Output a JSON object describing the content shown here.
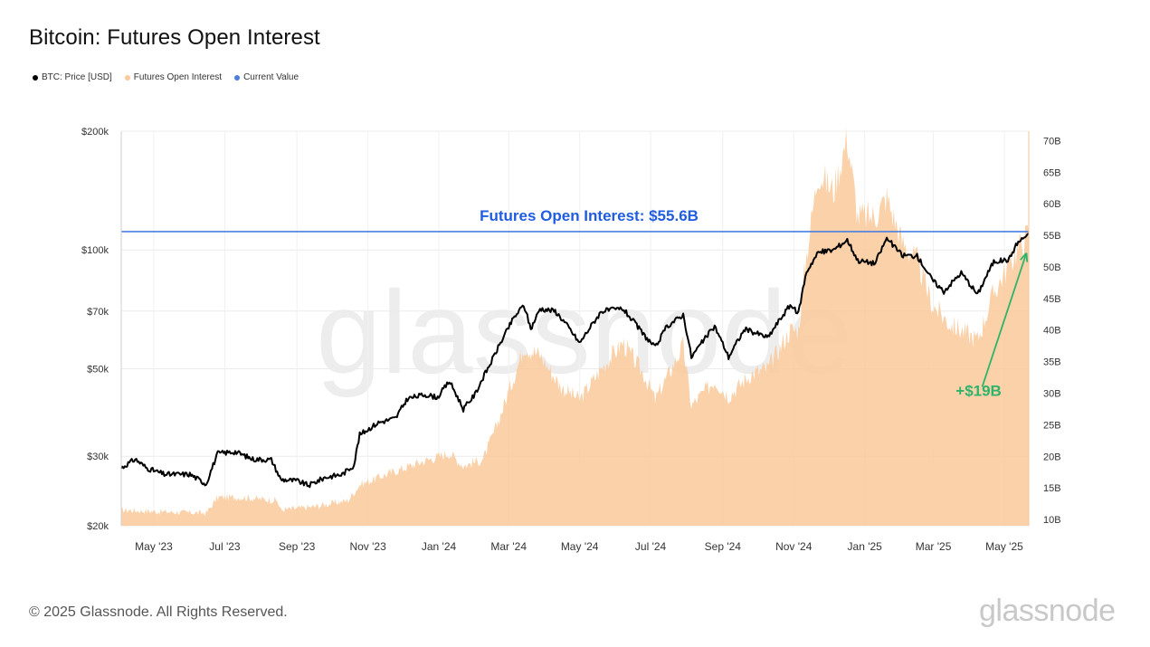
{
  "title": "Bitcoin: Futures Open Interest",
  "legend": [
    {
      "label": "BTC: Price [USD]",
      "color": "#000000"
    },
    {
      "label": "Futures Open Interest",
      "color": "#f9c99a"
    },
    {
      "label": "Current Value",
      "color": "#4a7fe0"
    }
  ],
  "footer": "© 2025 Glassnode. All Rights Reserved.",
  "brand": "glassnode",
  "watermark": "glassnode",
  "chart_data": {
    "type": "line",
    "x_axis": {
      "ticks": [
        "May '23",
        "Jul '23",
        "Sep '23",
        "Nov '23",
        "Jan '24",
        "Mar '24",
        "May '24",
        "Jul '24",
        "Sep '24",
        "Nov '24",
        "Jan '25",
        "Mar '25",
        "May '25"
      ],
      "range": [
        "2023-04-03",
        "2025-05-22"
      ]
    },
    "y_left": {
      "scale": "log",
      "range": [
        20000,
        200000
      ],
      "ticks": [
        {
          "value": 200000,
          "label": "$200k"
        },
        {
          "value": 100000,
          "label": "$100k"
        },
        {
          "value": 70000,
          "label": "$70k"
        },
        {
          "value": 50000,
          "label": "$50k"
        },
        {
          "value": 30000,
          "label": "$30k"
        },
        {
          "value": 20000,
          "label": "$20k"
        }
      ]
    },
    "y_right": {
      "scale": "linear",
      "range": [
        9,
        71.5
      ],
      "ticks": [
        {
          "value": 70,
          "label": "70B"
        },
        {
          "value": 65,
          "label": "65B"
        },
        {
          "value": 60,
          "label": "60B"
        },
        {
          "value": 55,
          "label": "55B"
        },
        {
          "value": 50,
          "label": "50B"
        },
        {
          "value": 45,
          "label": "45B"
        },
        {
          "value": 40,
          "label": "40B"
        },
        {
          "value": 35,
          "label": "35B"
        },
        {
          "value": 30,
          "label": "30B"
        },
        {
          "value": 25,
          "label": "25B"
        },
        {
          "value": 20,
          "label": "20B"
        },
        {
          "value": 15,
          "label": "15B"
        },
        {
          "value": 10,
          "label": "10B"
        }
      ]
    },
    "series": [
      {
        "name": "BTC: Price [USD]",
        "axis": "left",
        "color": "#000000",
        "points": [
          [
            "2023-04-03",
            28000
          ],
          [
            "2023-04-15",
            29500
          ],
          [
            "2023-04-25",
            28000
          ],
          [
            "2023-05-10",
            27000
          ],
          [
            "2023-06-01",
            27000
          ],
          [
            "2023-06-15",
            25500
          ],
          [
            "2023-06-25",
            30500
          ],
          [
            "2023-07-10",
            30800
          ],
          [
            "2023-07-25",
            29500
          ],
          [
            "2023-08-10",
            29400
          ],
          [
            "2023-08-18",
            26200
          ],
          [
            "2023-09-01",
            26000
          ],
          [
            "2023-09-11",
            25300
          ],
          [
            "2023-09-25",
            26500
          ],
          [
            "2023-10-10",
            27000
          ],
          [
            "2023-10-20",
            28500
          ],
          [
            "2023-10-25",
            34000
          ],
          [
            "2023-11-10",
            36500
          ],
          [
            "2023-11-25",
            37500
          ],
          [
            "2023-12-05",
            42000
          ],
          [
            "2023-12-20",
            43000
          ],
          [
            "2023-12-31",
            42300
          ],
          [
            "2024-01-10",
            46500
          ],
          [
            "2024-01-22",
            39500
          ],
          [
            "2024-02-01",
            43000
          ],
          [
            "2024-02-15",
            52000
          ],
          [
            "2024-02-28",
            62000
          ],
          [
            "2024-03-05",
            67000
          ],
          [
            "2024-03-14",
            72500
          ],
          [
            "2024-03-20",
            63000
          ],
          [
            "2024-03-28",
            71000
          ],
          [
            "2024-04-10",
            70000
          ],
          [
            "2024-04-20",
            64500
          ],
          [
            "2024-05-01",
            58000
          ],
          [
            "2024-05-20",
            70000
          ],
          [
            "2024-06-07",
            71000
          ],
          [
            "2024-06-25",
            61000
          ],
          [
            "2024-07-05",
            56500
          ],
          [
            "2024-07-15",
            64000
          ],
          [
            "2024-07-29",
            68500
          ],
          [
            "2024-08-05",
            53500
          ],
          [
            "2024-08-25",
            64000
          ],
          [
            "2024-09-06",
            53500
          ],
          [
            "2024-09-20",
            63000
          ],
          [
            "2024-10-10",
            60000
          ],
          [
            "2024-10-29",
            72500
          ],
          [
            "2024-11-05",
            69000
          ],
          [
            "2024-11-12",
            88000
          ],
          [
            "2024-11-22",
            98500
          ],
          [
            "2024-12-05",
            100000
          ],
          [
            "2024-12-17",
            106000
          ],
          [
            "2024-12-26",
            94000
          ],
          [
            "2025-01-10",
            92500
          ],
          [
            "2025-01-20",
            107000
          ],
          [
            "2025-02-02",
            97000
          ],
          [
            "2025-02-15",
            96500
          ],
          [
            "2025-02-28",
            84000
          ],
          [
            "2025-03-10",
            78500
          ],
          [
            "2025-03-25",
            87500
          ],
          [
            "2025-04-08",
            77000
          ],
          [
            "2025-04-22",
            93500
          ],
          [
            "2025-05-05",
            94500
          ],
          [
            "2025-05-12",
            104000
          ],
          [
            "2025-05-22",
            110000
          ]
        ]
      },
      {
        "name": "Futures Open Interest",
        "axis": "right",
        "color": "#f9c99a",
        "unit": "B",
        "points": [
          [
            "2023-04-03",
            11.5
          ],
          [
            "2023-05-10",
            11.2
          ],
          [
            "2023-06-15",
            11
          ],
          [
            "2023-06-25",
            13.5
          ],
          [
            "2023-07-15",
            13.5
          ],
          [
            "2023-08-15",
            13
          ],
          [
            "2023-08-18",
            11.5
          ],
          [
            "2023-09-15",
            12
          ],
          [
            "2023-10-15",
            13
          ],
          [
            "2023-10-25",
            15.5
          ],
          [
            "2023-11-15",
            17
          ],
          [
            "2023-12-15",
            19
          ],
          [
            "2024-01-10",
            20.5
          ],
          [
            "2024-01-22",
            18.5
          ],
          [
            "2024-02-08",
            19.5
          ],
          [
            "2024-02-20",
            25
          ],
          [
            "2024-03-10",
            35
          ],
          [
            "2024-03-14",
            37.5
          ],
          [
            "2024-03-28",
            36
          ],
          [
            "2024-04-15",
            31
          ],
          [
            "2024-05-01",
            29
          ],
          [
            "2024-05-20",
            34
          ],
          [
            "2024-06-07",
            38
          ],
          [
            "2024-06-25",
            33
          ],
          [
            "2024-07-05",
            29
          ],
          [
            "2024-07-29",
            37.5
          ],
          [
            "2024-08-05",
            28
          ],
          [
            "2024-08-25",
            32
          ],
          [
            "2024-09-06",
            29.5
          ],
          [
            "2024-09-25",
            33
          ],
          [
            "2024-10-10",
            34
          ],
          [
            "2024-10-29",
            40
          ],
          [
            "2024-11-05",
            40
          ],
          [
            "2024-11-12",
            52
          ],
          [
            "2024-11-22",
            65
          ],
          [
            "2024-12-05",
            62
          ],
          [
            "2024-12-17",
            70.5
          ],
          [
            "2024-12-26",
            58
          ],
          [
            "2025-01-10",
            58
          ],
          [
            "2025-01-20",
            61
          ],
          [
            "2025-02-02",
            54
          ],
          [
            "2025-02-15",
            51
          ],
          [
            "2025-02-28",
            44
          ],
          [
            "2025-03-15",
            41
          ],
          [
            "2025-04-08",
            38.5
          ],
          [
            "2025-04-22",
            46
          ],
          [
            "2025-05-10",
            52
          ],
          [
            "2025-05-22",
            55.6
          ]
        ]
      }
    ],
    "annotations": [
      {
        "text": "Futures Open Interest: $55.6B",
        "type": "horizontal-line",
        "value": 55.6,
        "axis": "right",
        "color": "#1f5ce0"
      },
      {
        "text": "+$19B",
        "type": "arrow",
        "from": [
          "2025-04-12",
          31
        ],
        "to": [
          "2025-05-20",
          52.2
        ],
        "color": "#2eb36b"
      }
    ]
  }
}
